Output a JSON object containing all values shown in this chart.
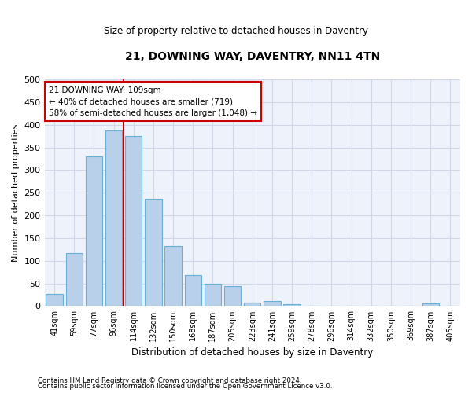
{
  "title": "21, DOWNING WAY, DAVENTRY, NN11 4TN",
  "subtitle": "Size of property relative to detached houses in Daventry",
  "xlabel": "Distribution of detached houses by size in Daventry",
  "ylabel": "Number of detached properties",
  "categories": [
    "41sqm",
    "59sqm",
    "77sqm",
    "96sqm",
    "114sqm",
    "132sqm",
    "150sqm",
    "168sqm",
    "187sqm",
    "205sqm",
    "223sqm",
    "241sqm",
    "259sqm",
    "278sqm",
    "296sqm",
    "314sqm",
    "332sqm",
    "350sqm",
    "369sqm",
    "387sqm",
    "405sqm"
  ],
  "bar_heights": [
    27,
    117,
    330,
    387,
    375,
    237,
    133,
    68,
    50,
    44,
    7,
    11,
    5,
    0,
    0,
    0,
    0,
    0,
    0,
    6,
    0
  ],
  "bar_color": "#b8d0ea",
  "bar_edge_color": "#6aafd6",
  "grid_color": "#d0d8e8",
  "annotation_text_line1": "21 DOWNING WAY: 109sqm",
  "annotation_text_line2": "← 40% of detached houses are smaller (719)",
  "annotation_text_line3": "58% of semi-detached houses are larger (1,048) →",
  "annotation_box_color": "#cc0000",
  "property_line_x": 3.5,
  "ylim": [
    0,
    500
  ],
  "yticks": [
    0,
    50,
    100,
    150,
    200,
    250,
    300,
    350,
    400,
    450,
    500
  ],
  "footnote1": "Contains HM Land Registry data © Crown copyright and database right 2024.",
  "footnote2": "Contains public sector information licensed under the Open Government Licence v3.0.",
  "bg_color": "#edf2fb"
}
